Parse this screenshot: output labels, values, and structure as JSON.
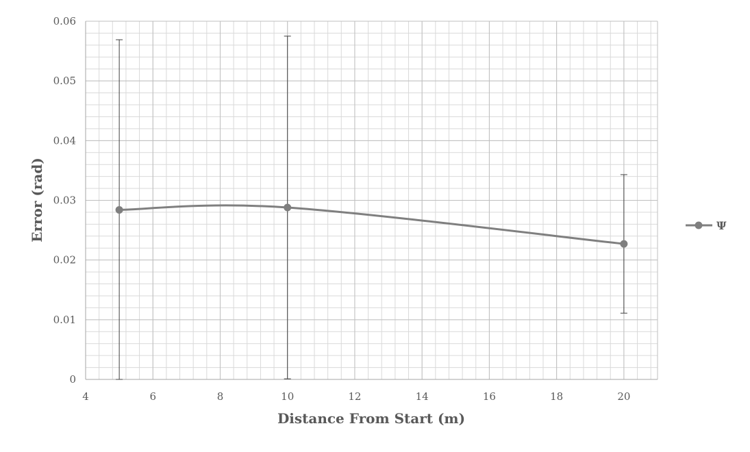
{
  "chart_data": {
    "type": "line",
    "xlabel": "Distance From Start (m)",
    "ylabel": "Error (rad)",
    "xlim": [
      4,
      21
    ],
    "ylim": [
      0,
      0.06
    ],
    "x_major_step": 2,
    "y_major_step": 0.01,
    "x_ticks": [
      "4",
      "6",
      "8",
      "10",
      "12",
      "14",
      "16",
      "18",
      "20"
    ],
    "y_ticks": [
      "0",
      "0.01",
      "0.02",
      "0.03",
      "0.04",
      "0.05",
      "0.06"
    ],
    "grid": true,
    "smoothed": true,
    "legend_position": "right",
    "series": [
      {
        "name": "Ψ",
        "color": "#7f7f7f",
        "x": [
          5,
          10,
          20
        ],
        "y": [
          0.0284,
          0.0288,
          0.0227
        ],
        "error_low": [
          0.0,
          0.0001,
          0.0111
        ],
        "error_high": [
          0.0569,
          0.0575,
          0.0343
        ]
      }
    ]
  }
}
